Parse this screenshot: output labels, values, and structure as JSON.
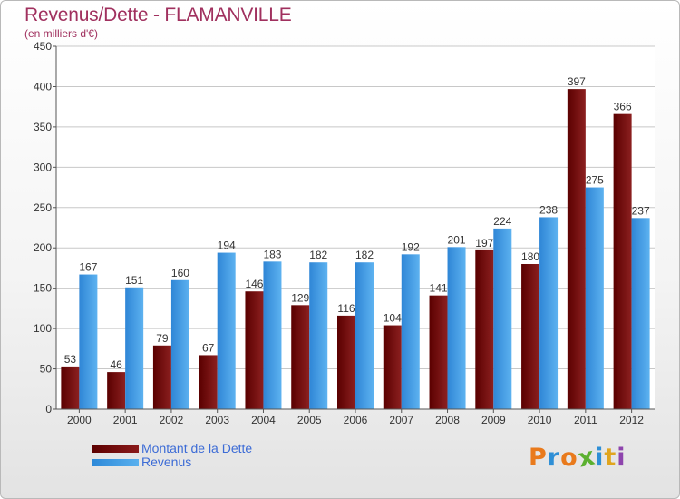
{
  "chart_data": {
    "type": "bar",
    "title": "Revenus/Dette - FLAMANVILLE",
    "subtitle": "(en milliers d'€)",
    "categories": [
      "2000",
      "2001",
      "2002",
      "2003",
      "2004",
      "2005",
      "2006",
      "2007",
      "2008",
      "2009",
      "2010",
      "2011",
      "2012"
    ],
    "series": [
      {
        "name": "Montant de la Dette",
        "color": "#7a1010",
        "values": [
          53,
          46,
          79,
          67,
          146,
          129,
          116,
          104,
          141,
          197,
          180,
          397,
          366
        ]
      },
      {
        "name": "Revenus",
        "color": "#4aa3e6",
        "values": [
          167,
          151,
          160,
          194,
          183,
          182,
          182,
          192,
          201,
          224,
          238,
          275,
          237
        ]
      }
    ],
    "yticks": [
      0,
      50,
      100,
      150,
      200,
      250,
      300,
      350,
      400,
      450
    ],
    "ylim": [
      0,
      450
    ],
    "grid": true,
    "legend_position": "bottom-left"
  },
  "logo": {
    "letters": [
      "P",
      "r",
      "o",
      "x",
      "i",
      "t",
      "i"
    ],
    "colors": [
      "#e97a1c",
      "#2e8fd6",
      "#e97a1c",
      "#5bb030",
      "#2e8fd6",
      "#e0a51e",
      "#8e44ad"
    ]
  }
}
